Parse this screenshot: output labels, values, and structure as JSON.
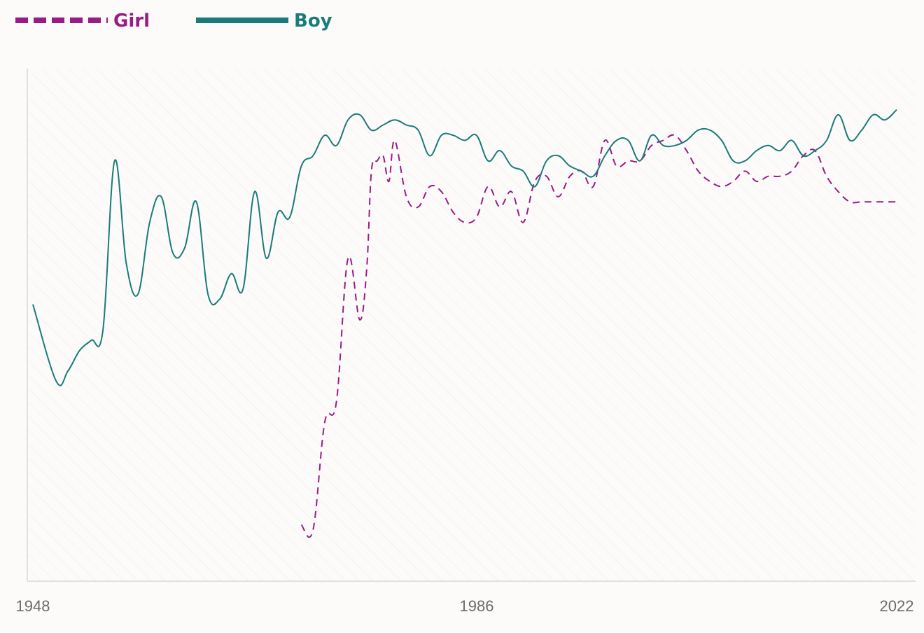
{
  "chart_data": {
    "type": "line",
    "title": "",
    "xlabel": "",
    "ylabel": "",
    "xlim": [
      1948,
      2022
    ],
    "ylim": [
      0,
      100
    ],
    "x_tick_labels": [
      "1948",
      "1986",
      "2022"
    ],
    "legend_position": "top-left",
    "grid": false,
    "series": [
      {
        "name": "Girl",
        "color": "#9b1b86",
        "style": "dashed",
        "x": [
          1971,
          1972,
          1973,
          1974,
          1975,
          1976,
          1976.6,
          1977,
          1977.5,
          1978,
          1978.5,
          1979,
          1980,
          1981,
          1982,
          1983,
          1984,
          1985,
          1986,
          1987,
          1988,
          1989,
          1990,
          1991,
          1992,
          1993,
          1994,
          1995,
          1996,
          1997,
          1998,
          1999,
          2000,
          2001,
          2002,
          2003,
          2004,
          2005,
          2006,
          2007,
          2008,
          2009,
          2010,
          2011,
          2012,
          2013,
          2014,
          2015,
          2016,
          2017,
          2018,
          2019,
          2020,
          2021,
          2022
        ],
        "y": [
          11,
          10,
          31,
          35,
          63,
          51,
          61,
          80,
          82,
          83,
          78,
          86,
          75,
          73,
          77,
          76,
          72,
          70,
          71,
          77,
          73,
          76,
          70,
          78,
          79,
          75,
          79,
          80,
          77,
          86,
          81,
          82,
          82,
          85,
          86,
          87,
          84,
          80,
          78,
          77,
          78,
          80,
          78,
          79,
          79,
          80,
          83,
          84,
          79,
          76,
          74,
          74,
          74,
          74,
          74
        ]
      },
      {
        "name": "Boy",
        "color": "#1a7b7b",
        "style": "solid",
        "x": [
          1948,
          1950,
          1951,
          1952,
          1953,
          1954,
          1955,
          1956,
          1957,
          1958,
          1959,
          1960,
          1961,
          1962,
          1963,
          1964,
          1965,
          1966,
          1967,
          1968,
          1969,
          1970,
          1971,
          1972,
          1973,
          1974,
          1975,
          1976,
          1977,
          1978,
          1979,
          1980,
          1981,
          1982,
          1983,
          1984,
          1985,
          1986,
          1987,
          1988,
          1989,
          1990,
          1991,
          1992,
          1993,
          1994,
          1995,
          1996,
          1997,
          1998,
          1999,
          2000,
          2001,
          2002,
          2003,
          2004,
          2005,
          2006,
          2007,
          2008,
          2009,
          2010,
          2011,
          2012,
          2013,
          2014,
          2015,
          2016,
          2017,
          2018,
          2019,
          2020,
          2021,
          2022
        ],
        "y": [
          54,
          39,
          41,
          45,
          47,
          49,
          82,
          62,
          56,
          70,
          75,
          64,
          65,
          74,
          56,
          55,
          60,
          57,
          76,
          63,
          72,
          71,
          81,
          83,
          87,
          85,
          90,
          91,
          88,
          89,
          90,
          89,
          88,
          83,
          87,
          87,
          86,
          87,
          82,
          84,
          81,
          80,
          77,
          82,
          83,
          81,
          80,
          79,
          83,
          86,
          86,
          82,
          87,
          85,
          85,
          86,
          88,
          88,
          86,
          82,
          82,
          84,
          85,
          84,
          86,
          83,
          84,
          86,
          91,
          86,
          88,
          91,
          90,
          92
        ]
      }
    ]
  }
}
